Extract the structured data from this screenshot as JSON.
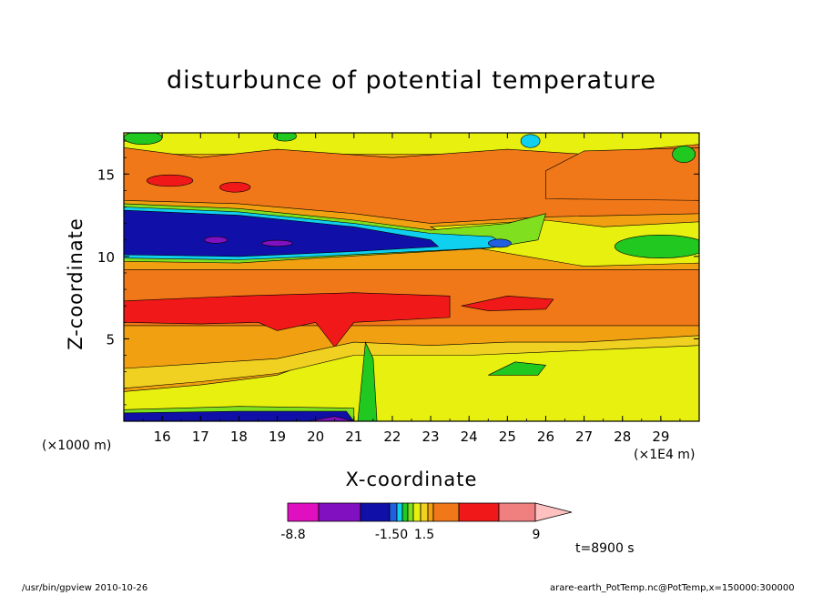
{
  "chart_data": {
    "type": "heatmap",
    "title": "disturbunce of potential temperature",
    "xlabel": "X-coordinate",
    "ylabel": "Z-coordinate",
    "x_unit_left": "(×1000 m)",
    "x_unit_right": "(×1E4 m)",
    "xlim": [
      15.0,
      30.0
    ],
    "ylim": [
      0.0,
      17.5
    ],
    "x_ticks": [
      16,
      17,
      18,
      19,
      20,
      21,
      22,
      23,
      24,
      25,
      26,
      27,
      28,
      29
    ],
    "x_tick_labels": [
      "16",
      "17",
      "18",
      "19",
      "20",
      "21",
      "22",
      "23",
      "24",
      "25",
      "26",
      "27",
      "28",
      "29"
    ],
    "y_ticks": [
      5,
      10,
      15
    ],
    "y_tick_labels": [
      "5",
      "10",
      "15"
    ],
    "colorbar": {
      "labels": [
        "-8.8",
        "-1.50",
        "1.5",
        "9"
      ],
      "label_values": [
        -8.8,
        -1.5,
        1.5,
        9
      ],
      "colors": [
        "#e010c0",
        "#8010c0",
        "#1010a8",
        "#2060e0",
        "#10d0f0",
        "#20c820",
        "#80e020",
        "#e8f010",
        "#f0d020",
        "#f0a010",
        "#f07818",
        "#f01818",
        "#f08080",
        "#ffc0c0"
      ]
    },
    "time_label": "t=8900 s",
    "regions": [
      {
        "name": "blue-band",
        "x": [
          15.0,
          23.0
        ],
        "y": [
          10.5,
          12.5
        ],
        "value": -4
      },
      {
        "name": "red-band-mid",
        "x": [
          15.0,
          23.5
        ],
        "y": [
          6.0,
          8.0
        ],
        "value": 5
      },
      {
        "name": "red-patch-right",
        "x": [
          23.8,
          26.2
        ],
        "y": [
          6.6,
          7.6
        ],
        "value": 5
      },
      {
        "name": "orange-upper-right",
        "x": [
          26.0,
          30.0
        ],
        "y": [
          13.5,
          16.5
        ],
        "value": 3
      },
      {
        "name": "green-upper",
        "x": [
          22.5,
          25.0
        ],
        "y": [
          11.0,
          12.0
        ],
        "value": -0.5
      },
      {
        "name": "green-right",
        "x": [
          28.0,
          30.0
        ],
        "y": [
          10.0,
          11.5
        ],
        "value": -0.5
      },
      {
        "name": "green-low",
        "x": [
          24.5,
          26.0
        ],
        "y": [
          2.8,
          3.6
        ],
        "value": -0.5
      },
      {
        "name": "blue-bottom",
        "x": [
          15.0,
          21.0
        ],
        "y": [
          0.0,
          0.7
        ],
        "value": -3
      }
    ]
  },
  "footer": {
    "left": "/usr/bin/gpview   2010-10-26",
    "right": "arare-earth_PotTemp.nc@PotTemp,x=150000:300000"
  },
  "colors": {
    "c_m8": "#e010c0",
    "c_m6": "#8010c0",
    "c_m4": "#1010a8",
    "c_m2": "#2060e0",
    "c_m1": "#10d0f0",
    "c_m05": "#20c820",
    "c_m02": "#80e020",
    "c_0": "#e8f010",
    "c_05": "#f0d020",
    "c_1": "#f0a010",
    "c_2": "#f07818",
    "c_3": "#f07818",
    "c_5": "#f01818",
    "c_9": "#f08080"
  }
}
